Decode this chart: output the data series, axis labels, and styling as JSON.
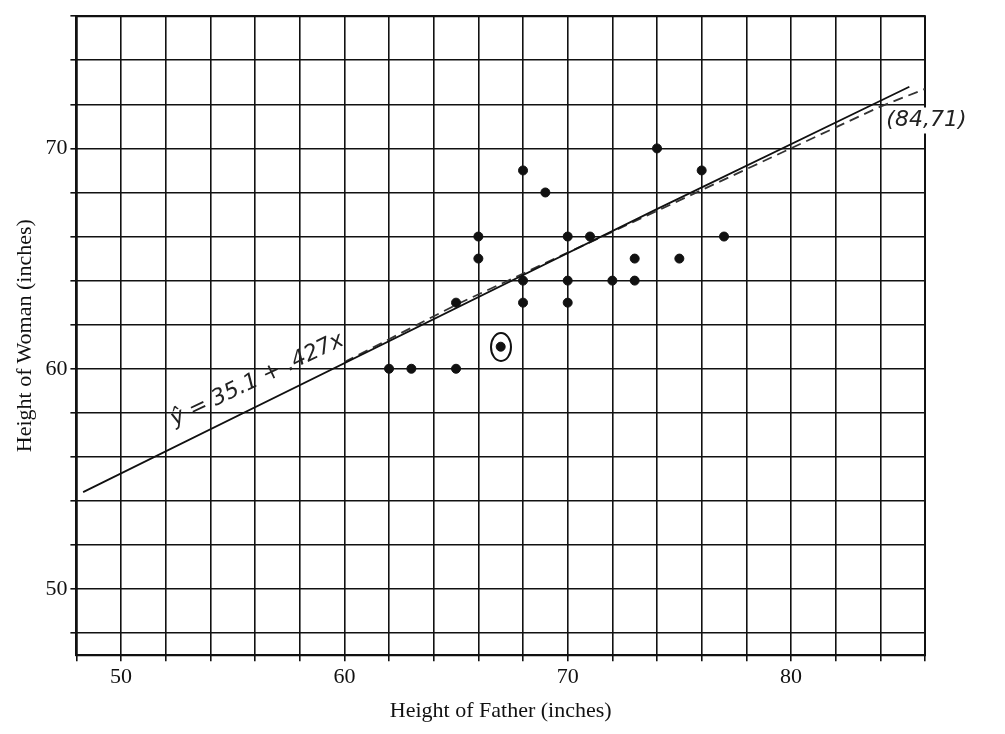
{
  "chart_data": {
    "type": "scatter",
    "xlabel": "Height of Father (inches)",
    "ylabel": "Height of Woman (inches)",
    "xlim": [
      48,
      86
    ],
    "ylim": [
      47,
      76
    ],
    "xticks": [
      {
        "value": 48,
        "label": null
      },
      50,
      {
        "value": 52,
        "label": null
      },
      {
        "value": 54,
        "label": null
      },
      {
        "value": 56,
        "label": null
      },
      {
        "value": 58,
        "label": null
      },
      60,
      {
        "value": 62,
        "label": null
      },
      {
        "value": 64,
        "label": null
      },
      {
        "value": 66,
        "label": null
      },
      {
        "value": 68,
        "label": null
      },
      70,
      {
        "value": 72,
        "label": null
      },
      {
        "value": 74,
        "label": null
      },
      {
        "value": 76,
        "label": null
      },
      {
        "value": 78,
        "label": null
      },
      80,
      {
        "value": 82,
        "label": null
      },
      {
        "value": 84,
        "label": null
      },
      {
        "value": 86,
        "label": null
      }
    ],
    "yticks": [
      {
        "value": 48,
        "label": null
      },
      50,
      {
        "value": 52,
        "label": null
      },
      {
        "value": 54,
        "label": null
      },
      {
        "value": 56,
        "label": null
      },
      {
        "value": 58,
        "label": null
      },
      60,
      {
        "value": 62,
        "label": null
      },
      {
        "value": 64,
        "label": null
      },
      {
        "value": 66,
        "label": null
      },
      {
        "value": 68,
        "label": null
      },
      70,
      {
        "value": 72,
        "label": null
      },
      {
        "value": 74,
        "label": null
      },
      {
        "value": 76,
        "label": null
      }
    ],
    "grid": true,
    "marker": "circle",
    "series": [
      {
        "color": "#111111",
        "x": [
          62,
          63,
          65,
          65,
          66,
          66,
          67,
          68,
          68,
          68,
          69,
          70,
          70,
          70,
          71,
          72,
          73,
          73,
          74,
          75,
          76,
          77
        ],
        "values": [
          60,
          60,
          60,
          63,
          66,
          65,
          61,
          69,
          64,
          63,
          68,
          66,
          64,
          63,
          66,
          64,
          65,
          64,
          70,
          65,
          69,
          66
        ]
      },
      {
        "type": "line",
        "color": "#111111",
        "line_style": "solid",
        "marker": "none",
        "x": [
          48.3,
          73.9,
          85.3
        ],
        "values": [
          54.4,
          67.2,
          72.8
        ]
      },
      {
        "type": "line",
        "color": "#333333",
        "line_style": "dashed",
        "marker": "none",
        "x": [
          60,
          65,
          84,
          86
        ],
        "values": [
          60.3,
          62.9,
          71.9,
          72.7
        ]
      }
    ],
    "annotations": [
      "ŷ = 35.1 + .427x",
      {
        "text": "(84,71)",
        "x": 84,
        "y": 71.9
      }
    ]
  }
}
